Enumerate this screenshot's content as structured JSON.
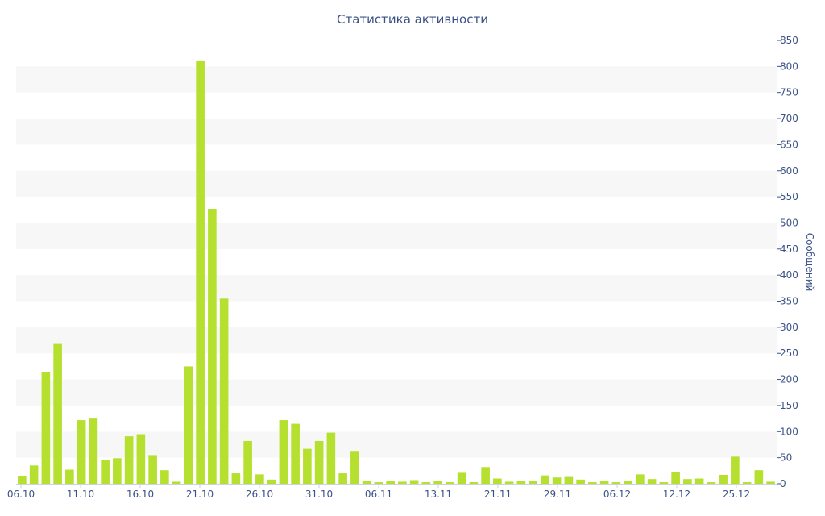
{
  "chart_data": {
    "type": "bar",
    "title": "Статистика активности",
    "xlabel": "",
    "ylabel": "Сообщений",
    "ylim": [
      0,
      850
    ],
    "yticks": [
      0,
      50,
      100,
      150,
      200,
      250,
      300,
      350,
      400,
      450,
      500,
      550,
      600,
      650,
      700,
      750,
      800,
      850
    ],
    "y_axis_side": "right",
    "grid": "alternating horizontal bands",
    "x_tick_labels": [
      "06.10",
      "11.10",
      "16.10",
      "21.10",
      "26.10",
      "31.10",
      "06.11",
      "13.11",
      "21.11",
      "29.11",
      "06.12",
      "12.12",
      "25.12"
    ],
    "bar_color": "#b5e02f",
    "band_color": "#f7f7f7",
    "text_color": "#3b5287",
    "values": [
      14,
      35,
      214,
      268,
      27,
      122,
      125,
      45,
      49,
      91,
      95,
      55,
      26,
      4,
      225,
      810,
      527,
      355,
      20,
      82,
      18,
      8,
      122,
      115,
      67,
      82,
      98,
      20,
      63,
      5,
      3,
      6,
      4,
      7,
      3,
      6,
      3,
      21,
      3,
      32,
      10,
      4,
      5,
      5,
      16,
      12,
      13,
      8,
      3,
      6,
      3,
      5,
      18,
      9,
      3,
      23,
      9,
      10,
      3,
      17,
      52,
      3,
      26,
      4
    ]
  }
}
